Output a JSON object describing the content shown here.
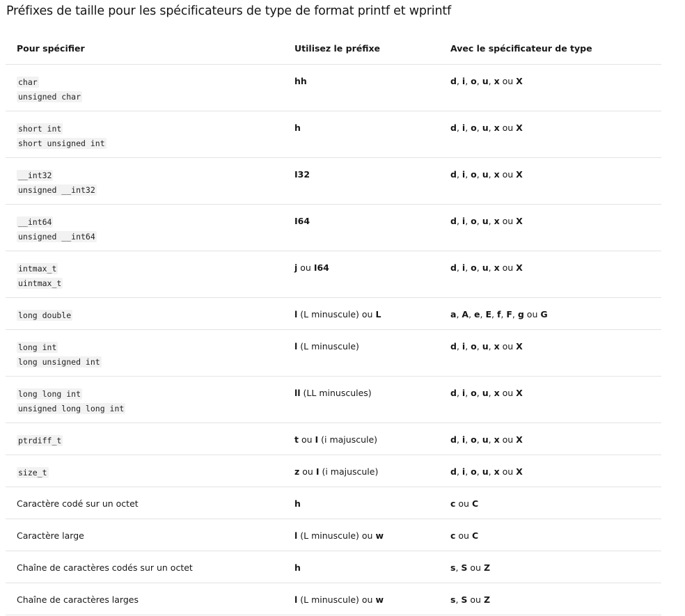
{
  "title": "Préfixes de taille pour les spécificateurs de type de format printf et wprintf",
  "headers": [
    "Pour spécifier",
    "Utilisez le préfixe",
    "Avec le spécificateur de type"
  ],
  "rows": [
    {
      "spec_code": [
        "char",
        "unsigned char"
      ],
      "prefix": [
        {
          "t": "hh",
          "b": true
        }
      ],
      "type": [
        {
          "t": "d",
          "b": true
        },
        {
          "t": ", "
        },
        {
          "t": "i",
          "b": true
        },
        {
          "t": ", "
        },
        {
          "t": "o",
          "b": true
        },
        {
          "t": ", "
        },
        {
          "t": "u",
          "b": true
        },
        {
          "t": ", "
        },
        {
          "t": "x",
          "b": true
        },
        {
          "t": " ou "
        },
        {
          "t": "X",
          "b": true
        }
      ]
    },
    {
      "spec_code": [
        "short int",
        "short unsigned int"
      ],
      "prefix": [
        {
          "t": "h",
          "b": true
        }
      ],
      "type": [
        {
          "t": "d",
          "b": true
        },
        {
          "t": ", "
        },
        {
          "t": "i",
          "b": true
        },
        {
          "t": ", "
        },
        {
          "t": "o",
          "b": true
        },
        {
          "t": ", "
        },
        {
          "t": "u",
          "b": true
        },
        {
          "t": ", "
        },
        {
          "t": "x",
          "b": true
        },
        {
          "t": " ou "
        },
        {
          "t": "X",
          "b": true
        }
      ]
    },
    {
      "spec_code": [
        "__int32",
        "unsigned __int32"
      ],
      "prefix": [
        {
          "t": "I32",
          "b": true
        }
      ],
      "type": [
        {
          "t": "d",
          "b": true
        },
        {
          "t": ", "
        },
        {
          "t": "i",
          "b": true
        },
        {
          "t": ", "
        },
        {
          "t": "o",
          "b": true
        },
        {
          "t": ", "
        },
        {
          "t": "u",
          "b": true
        },
        {
          "t": ", "
        },
        {
          "t": "x",
          "b": true
        },
        {
          "t": " ou "
        },
        {
          "t": "X",
          "b": true
        }
      ]
    },
    {
      "spec_code": [
        "__int64",
        "unsigned __int64"
      ],
      "prefix": [
        {
          "t": "I64",
          "b": true
        }
      ],
      "type": [
        {
          "t": "d",
          "b": true
        },
        {
          "t": ", "
        },
        {
          "t": "i",
          "b": true
        },
        {
          "t": ", "
        },
        {
          "t": "o",
          "b": true
        },
        {
          "t": ", "
        },
        {
          "t": "u",
          "b": true
        },
        {
          "t": ", "
        },
        {
          "t": "x",
          "b": true
        },
        {
          "t": " ou "
        },
        {
          "t": "X",
          "b": true
        }
      ]
    },
    {
      "spec_code": [
        "intmax_t",
        "uintmax_t"
      ],
      "prefix": [
        {
          "t": "j",
          "b": true
        },
        {
          "t": " ou "
        },
        {
          "t": "I64",
          "b": true
        }
      ],
      "type": [
        {
          "t": "d",
          "b": true
        },
        {
          "t": ", "
        },
        {
          "t": "i",
          "b": true
        },
        {
          "t": ", "
        },
        {
          "t": "o",
          "b": true
        },
        {
          "t": ", "
        },
        {
          "t": "u",
          "b": true
        },
        {
          "t": ", "
        },
        {
          "t": "x",
          "b": true
        },
        {
          "t": " ou "
        },
        {
          "t": "X",
          "b": true
        }
      ]
    },
    {
      "spec_code": [
        "long double"
      ],
      "prefix": [
        {
          "t": "l",
          "b": true
        },
        {
          "t": " (L minuscule) ou "
        },
        {
          "t": "L",
          "b": true
        }
      ],
      "type": [
        {
          "t": "a",
          "b": true
        },
        {
          "t": ", "
        },
        {
          "t": "A",
          "b": true
        },
        {
          "t": ", "
        },
        {
          "t": "e",
          "b": true
        },
        {
          "t": ", "
        },
        {
          "t": "E",
          "b": true
        },
        {
          "t": ", "
        },
        {
          "t": "f",
          "b": true
        },
        {
          "t": ", "
        },
        {
          "t": "F",
          "b": true
        },
        {
          "t": ", "
        },
        {
          "t": "g",
          "b": true
        },
        {
          "t": " ou "
        },
        {
          "t": "G",
          "b": true
        }
      ]
    },
    {
      "spec_code": [
        "long int",
        "long unsigned int"
      ],
      "prefix": [
        {
          "t": "l",
          "b": true
        },
        {
          "t": " (L minuscule)"
        }
      ],
      "type": [
        {
          "t": "d",
          "b": true
        },
        {
          "t": ", "
        },
        {
          "t": "i",
          "b": true
        },
        {
          "t": ", "
        },
        {
          "t": "o",
          "b": true
        },
        {
          "t": ", "
        },
        {
          "t": "u",
          "b": true
        },
        {
          "t": ", "
        },
        {
          "t": "x",
          "b": true
        },
        {
          "t": " ou "
        },
        {
          "t": "X",
          "b": true
        }
      ]
    },
    {
      "spec_code": [
        "long long int",
        "unsigned long long int"
      ],
      "prefix": [
        {
          "t": "ll",
          "b": true
        },
        {
          "t": " (LL minuscules)"
        }
      ],
      "type": [
        {
          "t": "d",
          "b": true
        },
        {
          "t": ", "
        },
        {
          "t": "i",
          "b": true
        },
        {
          "t": ", "
        },
        {
          "t": "o",
          "b": true
        },
        {
          "t": ", "
        },
        {
          "t": "u",
          "b": true
        },
        {
          "t": ", "
        },
        {
          "t": "x",
          "b": true
        },
        {
          "t": " ou "
        },
        {
          "t": "X",
          "b": true
        }
      ]
    },
    {
      "spec_code": [
        "ptrdiff_t"
      ],
      "prefix": [
        {
          "t": "t",
          "b": true
        },
        {
          "t": " ou "
        },
        {
          "t": "I",
          "b": true
        },
        {
          "t": " (i majuscule)"
        }
      ],
      "type": [
        {
          "t": "d",
          "b": true
        },
        {
          "t": ", "
        },
        {
          "t": "i",
          "b": true
        },
        {
          "t": ", "
        },
        {
          "t": "o",
          "b": true
        },
        {
          "t": ", "
        },
        {
          "t": "u",
          "b": true
        },
        {
          "t": ", "
        },
        {
          "t": "x",
          "b": true
        },
        {
          "t": " ou "
        },
        {
          "t": "X",
          "b": true
        }
      ]
    },
    {
      "spec_code": [
        "size_t"
      ],
      "prefix": [
        {
          "t": "z",
          "b": true
        },
        {
          "t": " ou "
        },
        {
          "t": "I",
          "b": true
        },
        {
          "t": " (i majuscule)"
        }
      ],
      "type": [
        {
          "t": "d",
          "b": true
        },
        {
          "t": ", "
        },
        {
          "t": "i",
          "b": true
        },
        {
          "t": ", "
        },
        {
          "t": "o",
          "b": true
        },
        {
          "t": ", "
        },
        {
          "t": "u",
          "b": true
        },
        {
          "t": ", "
        },
        {
          "t": "x",
          "b": true
        },
        {
          "t": " ou "
        },
        {
          "t": "X",
          "b": true
        }
      ]
    },
    {
      "spec_text": "Caractère codé sur un octet",
      "prefix": [
        {
          "t": "h",
          "b": true
        }
      ],
      "type": [
        {
          "t": "c",
          "b": true
        },
        {
          "t": " ou "
        },
        {
          "t": "C",
          "b": true
        }
      ]
    },
    {
      "spec_text": "Caractère large",
      "prefix": [
        {
          "t": "l",
          "b": true
        },
        {
          "t": " (L minuscule) ou "
        },
        {
          "t": "w",
          "b": true
        }
      ],
      "type": [
        {
          "t": "c",
          "b": true
        },
        {
          "t": " ou "
        },
        {
          "t": "C",
          "b": true
        }
      ]
    },
    {
      "spec_text": "Chaîne de caractères codés sur un octet",
      "prefix": [
        {
          "t": "h",
          "b": true
        }
      ],
      "type": [
        {
          "t": "s",
          "b": true
        },
        {
          "t": ", "
        },
        {
          "t": "S",
          "b": true
        },
        {
          "t": " ou "
        },
        {
          "t": "Z",
          "b": true
        }
      ]
    },
    {
      "spec_text": "Chaîne de caractères larges",
      "prefix": [
        {
          "t": "l",
          "b": true
        },
        {
          "t": " (L minuscule) ou "
        },
        {
          "t": "w",
          "b": true
        }
      ],
      "type": [
        {
          "t": "s",
          "b": true
        },
        {
          "t": ", "
        },
        {
          "t": "S",
          "b": true
        },
        {
          "t": " ou "
        },
        {
          "t": "Z",
          "b": true
        }
      ]
    }
  ]
}
